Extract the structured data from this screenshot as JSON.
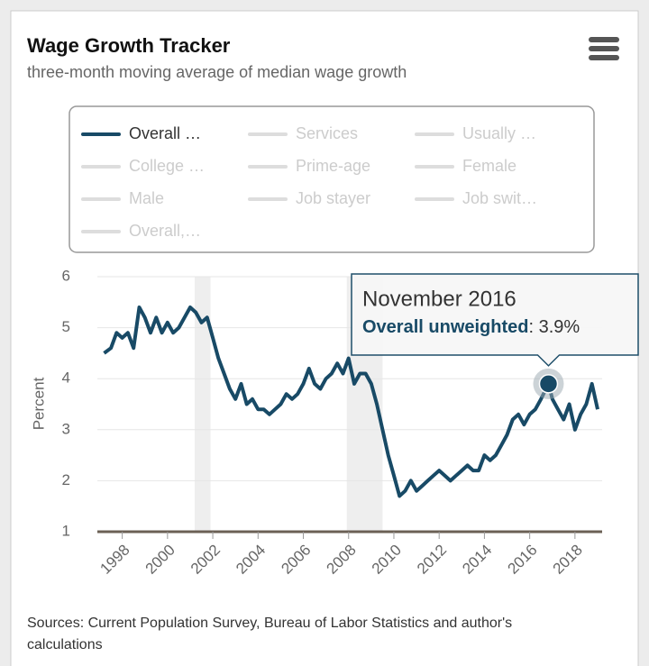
{
  "chart_data": {
    "type": "line",
    "title": "Wage Growth Tracker",
    "subtitle": "three-month moving average of median wage growth",
    "ylabel": "Percent",
    "source": [
      "Sources: Current Population Survey, Bureau of Labor Statistics and author's",
      "calculations"
    ],
    "legend": [
      "Overall …",
      "Services",
      "Usually …",
      "College …",
      "Prime-age",
      "Female",
      "Male",
      "Job stayer",
      "Job swit…",
      "Overall,…"
    ],
    "x": [
      1997.2,
      1997.5,
      1997.75,
      1998.0,
      1998.25,
      1998.5,
      1998.75,
      1999.0,
      1999.25,
      1999.5,
      1999.75,
      2000.0,
      2000.25,
      2000.5,
      2000.75,
      2001.0,
      2001.25,
      2001.5,
      2001.75,
      2002.0,
      2002.25,
      2002.5,
      2002.75,
      2003.0,
      2003.25,
      2003.5,
      2003.75,
      2004.0,
      2004.25,
      2004.5,
      2004.75,
      2005.0,
      2005.25,
      2005.5,
      2005.75,
      2006.0,
      2006.25,
      2006.5,
      2006.75,
      2007.0,
      2007.25,
      2007.5,
      2007.75,
      2008.0,
      2008.25,
      2008.5,
      2008.75,
      2009.0,
      2009.25,
      2009.5,
      2009.75,
      2010.0,
      2010.25,
      2010.5,
      2010.75,
      2011.0,
      2011.25,
      2011.5,
      2011.75,
      2012.0,
      2012.25,
      2012.5,
      2012.75,
      2013.0,
      2013.25,
      2013.5,
      2013.75,
      2014.0,
      2014.25,
      2014.5,
      2014.75,
      2015.0,
      2015.25,
      2015.5,
      2015.75,
      2016.0,
      2016.25,
      2016.5,
      2016.83,
      2017.0,
      2017.25,
      2017.5,
      2017.75,
      2018.0,
      2018.25,
      2018.5,
      2018.75,
      2019.0
    ],
    "series": [
      {
        "name": "Overall unweighted",
        "color": "#184a66",
        "values": [
          4.5,
          4.6,
          4.9,
          4.8,
          4.9,
          4.6,
          5.4,
          5.2,
          4.9,
          5.2,
          4.9,
          5.1,
          4.9,
          5.0,
          5.2,
          5.4,
          5.3,
          5.1,
          5.2,
          4.8,
          4.4,
          4.1,
          3.8,
          3.6,
          3.9,
          3.5,
          3.6,
          3.4,
          3.4,
          3.3,
          3.4,
          3.5,
          3.7,
          3.6,
          3.7,
          3.9,
          4.2,
          3.9,
          3.8,
          4.0,
          4.1,
          4.3,
          4.1,
          4.4,
          3.9,
          4.1,
          4.1,
          3.9,
          3.5,
          3.0,
          2.5,
          2.1,
          1.7,
          1.8,
          2.0,
          1.8,
          1.9,
          2.0,
          2.1,
          2.2,
          2.1,
          2.0,
          2.1,
          2.2,
          2.3,
          2.2,
          2.2,
          2.5,
          2.4,
          2.5,
          2.7,
          2.9,
          3.2,
          3.3,
          3.1,
          3.3,
          3.4,
          3.6,
          3.9,
          3.6,
          3.4,
          3.2,
          3.5,
          3.0,
          3.3,
          3.5,
          3.9,
          3.4
        ]
      }
    ],
    "recessions": [
      [
        2001.2,
        2001.9
      ],
      [
        2007.92,
        2009.5
      ]
    ],
    "xlim": [
      1996.9,
      2019.2
    ],
    "xticks": [
      1998,
      2000,
      2002,
      2004,
      2006,
      2008,
      2010,
      2012,
      2014,
      2016,
      2018
    ],
    "ylim": [
      1,
      6
    ],
    "yticks": [
      1,
      2,
      3,
      4,
      5,
      6
    ],
    "grid": true,
    "tooltip": {
      "title": "November 2016",
      "name": "Overall unweighted",
      "separator": ": ",
      "x": 2016.83,
      "value": 3.9,
      "value_label": "3.9%"
    }
  }
}
